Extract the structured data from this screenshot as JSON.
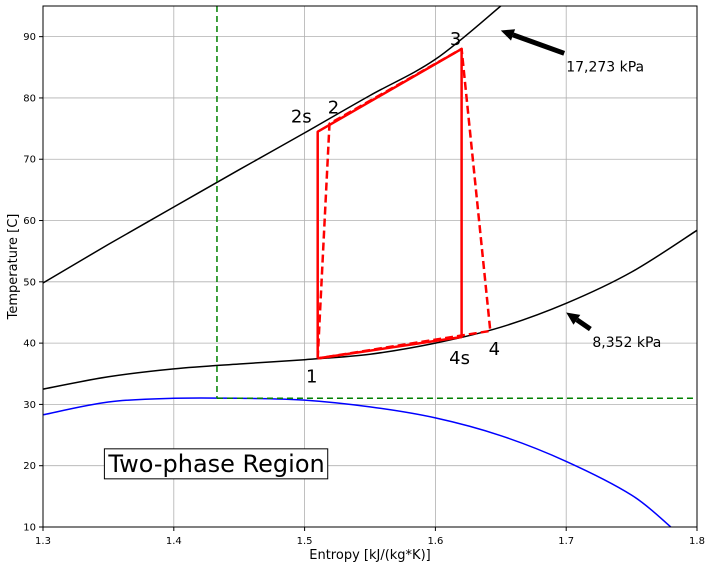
{
  "chart_data": {
    "type": "line",
    "xlabel": "Entropy [kJ/(kg*K)]",
    "ylabel": "Temperature [C]",
    "xlim": [
      1.3,
      1.8
    ],
    "ylim": [
      10,
      95
    ],
    "xticks": [
      1.3,
      1.4,
      1.5,
      1.6,
      1.7,
      1.8
    ],
    "yticks": [
      10,
      20,
      30,
      40,
      50,
      60,
      70,
      80,
      90
    ],
    "grid": true,
    "colors": {
      "isobar": "#000000",
      "dome": "#0000ff",
      "cycle": "#ff0000",
      "critical": "#008000",
      "arrow": "#000000"
    },
    "series": [
      {
        "name": "17,273 kPa",
        "style": "isobar",
        "x": [
          1.3,
          1.35,
          1.4,
          1.45,
          1.5,
          1.55,
          1.6,
          1.65
        ],
        "y": [
          49.8,
          56.1,
          62.2,
          68.3,
          74.3,
          80.4,
          86.3,
          95.0
        ]
      },
      {
        "name": "8,352 kPa",
        "style": "isobar",
        "x": [
          1.3,
          1.35,
          1.4,
          1.45,
          1.5,
          1.55,
          1.6,
          1.65,
          1.7,
          1.75,
          1.8
        ],
        "y": [
          32.5,
          34.5,
          35.8,
          36.6,
          37.3,
          38.2,
          40.0,
          42.6,
          46.5,
          51.6,
          58.4
        ]
      },
      {
        "name": "",
        "style": "dome",
        "x": [
          1.3,
          1.35,
          1.4,
          1.45,
          1.5,
          1.55,
          1.6,
          1.65,
          1.7,
          1.75,
          1.78
        ],
        "y": [
          28.3,
          30.4,
          31.0,
          31.0,
          30.7,
          29.6,
          27.8,
          24.9,
          20.7,
          15.2,
          10.0
        ]
      }
    ],
    "cycle": {
      "ideal": [
        {
          "label": "1",
          "s": 1.51,
          "T": 37.5
        },
        {
          "label": "2s",
          "s": 1.51,
          "T": 74.5
        },
        {
          "label": "3",
          "s": 1.62,
          "T": 88.0
        },
        {
          "label": "4s",
          "s": 1.62,
          "T": 41.0
        },
        {
          "label": "1",
          "s": 1.51,
          "T": 37.5
        }
      ],
      "actual": [
        {
          "label": "1",
          "s": 1.51,
          "T": 37.5
        },
        {
          "label": "2",
          "s": 1.519,
          "T": 75.8
        },
        {
          "label": "3",
          "s": 1.62,
          "T": 88.0
        },
        {
          "label": "4",
          "s": 1.642,
          "T": 42.0
        },
        {
          "label": "1",
          "s": 1.51,
          "T": 37.5
        }
      ]
    },
    "critical_lines": {
      "s": 1.433,
      "T": 31.0
    },
    "annotations": [
      {
        "text": "17,273 kPa",
        "text_s": 1.7,
        "text_T": 85.0,
        "arrow_s": 1.65,
        "arrow_T": 91.0
      },
      {
        "text": "8,352 kPa",
        "text_s": 1.72,
        "text_T": 40.0,
        "arrow_s": 1.7,
        "arrow_T": 45.0
      }
    ],
    "point_labels": [
      {
        "text": "1",
        "s": 1.51,
        "T": 37.5,
        "pos": "below-left"
      },
      {
        "text": "2s",
        "s": 1.51,
        "T": 74.5,
        "pos": "left"
      },
      {
        "text": "2",
        "s": 1.519,
        "T": 75.8,
        "pos": "above"
      },
      {
        "text": "3",
        "s": 1.62,
        "T": 88.0,
        "pos": "above-left"
      },
      {
        "text": "4s",
        "s": 1.62,
        "T": 41.0,
        "pos": "below"
      },
      {
        "text": "4",
        "s": 1.642,
        "T": 42.0,
        "pos": "below-right"
      }
    ],
    "region_label": "Two-phase Region",
    "region_label_pos": {
      "s": 1.35,
      "T": 19.0
    }
  }
}
